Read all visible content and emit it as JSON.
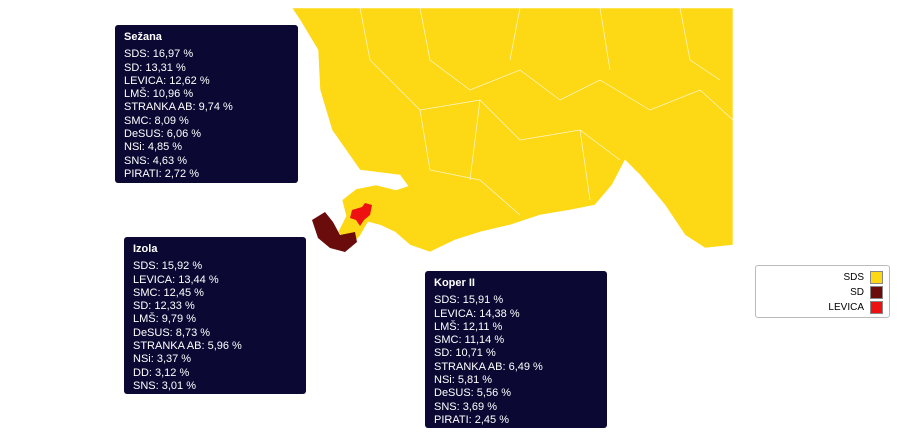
{
  "tooltips": [
    {
      "title": "Sežana",
      "rows": [
        "SDS: 16,97 %",
        "SD: 13,31 %",
        "LEVICA: 12,62 %",
        "LMŠ: 10,96 %",
        "STRANKA AB: 9,74 %",
        "SMC: 8,09 %",
        "DeSUS: 6,06 %",
        "NSi: 4,85 %",
        "SNS: 4,63 %",
        "PIRATI: 2,72 %"
      ]
    },
    {
      "title": "Izola",
      "rows": [
        "SDS: 15,92 %",
        "LEVICA: 13,44 %",
        "SMC: 12,45 %",
        "SD: 12,33 %",
        "LMŠ: 9,79 %",
        "DeSUS: 8,73 %",
        "STRANKA AB: 5,96 %",
        "NSi: 3,37 %",
        "DD: 3,12 %",
        "SNS: 3,01 %"
      ]
    },
    {
      "title": "Koper II",
      "rows": [
        "SDS: 15,91 %",
        "LEVICA: 14,38 %",
        "LMŠ: 12,11 %",
        "SMC: 11,14 %",
        "SD: 10,71 %",
        "STRANKA AB: 6,49 %",
        "NSi: 5,81 %",
        "DeSUS: 5,56 %",
        "SNS: 3,69 %",
        "PIRATI: 2,45 %"
      ]
    }
  ],
  "legend": [
    {
      "label": "SDS",
      "color": "#fdd814"
    },
    {
      "label": "SD",
      "color": "#6b0c0c"
    },
    {
      "label": "LEVICA",
      "color": "#ee1111"
    }
  ]
}
